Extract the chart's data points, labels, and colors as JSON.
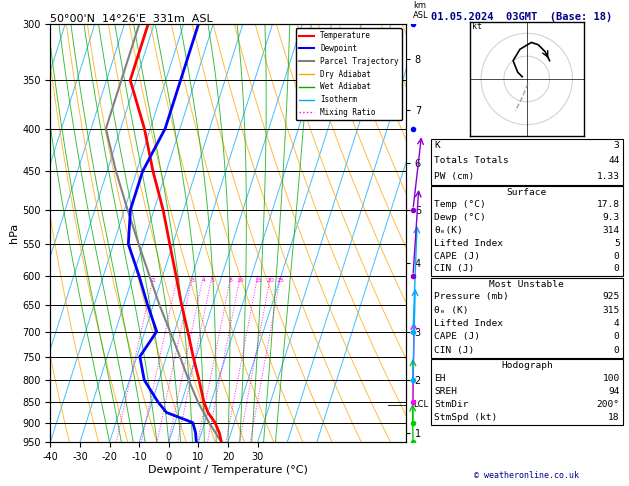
{
  "title_left": "50°00'N  14°26'E  331m  ASL",
  "title_right": "01.05.2024  03GMT  (Base: 18)",
  "xlabel": "Dewpoint / Temperature (°C)",
  "ylabel_left": "hPa",
  "pressure_levels": [
    300,
    350,
    400,
    450,
    500,
    550,
    600,
    650,
    700,
    750,
    800,
    850,
    900,
    950
  ],
  "temp_min": -40,
  "temp_max": 35,
  "temp_ticks": [
    -40,
    -30,
    -20,
    -10,
    0,
    10,
    20,
    30
  ],
  "km_ticks": [
    1,
    2,
    3,
    4,
    5,
    6,
    7,
    8
  ],
  "km_pressures": [
    925,
    800,
    700,
    580,
    500,
    440,
    380,
    330
  ],
  "lcl_pressure": 857,
  "mixing_ratio_values": [
    1,
    2,
    3,
    4,
    5,
    8,
    10,
    15,
    20,
    25
  ],
  "temperature_profile": {
    "pressure": [
      950,
      925,
      900,
      875,
      850,
      800,
      750,
      700,
      650,
      600,
      550,
      500,
      450,
      400,
      350,
      300
    ],
    "temp": [
      17.8,
      16.0,
      13.5,
      10.0,
      7.5,
      3.5,
      -1.0,
      -5.5,
      -10.5,
      -15.5,
      -21.0,
      -27.0,
      -34.5,
      -42.0,
      -52.0,
      -52.0
    ]
  },
  "dewpoint_profile": {
    "pressure": [
      950,
      925,
      900,
      875,
      850,
      800,
      750,
      700,
      650,
      600,
      550,
      500,
      450,
      400,
      350,
      300
    ],
    "temp": [
      9.3,
      8.0,
      6.0,
      -4.0,
      -8.0,
      -15.0,
      -19.0,
      -16.0,
      -22.0,
      -28.0,
      -35.0,
      -38.0,
      -38.0,
      -35.0,
      -35.0,
      -35.0
    ]
  },
  "parcel_trajectory": {
    "pressure": [
      950,
      900,
      850,
      800,
      750,
      700,
      650,
      600,
      550,
      500,
      450,
      400,
      350,
      300
    ],
    "temp": [
      17.8,
      11.5,
      5.5,
      0.0,
      -5.5,
      -11.5,
      -18.0,
      -24.5,
      -31.5,
      -39.0,
      -47.0,
      -55.0,
      -55.0,
      -55.0
    ]
  },
  "temp_color": "#ff0000",
  "dewpoint_color": "#0000ff",
  "parcel_color": "#808080",
  "dry_adiabat_color": "#ffa500",
  "wet_adiabat_color": "#00aa00",
  "isotherm_color": "#00aaff",
  "mixing_ratio_color": "#ff00ff",
  "stats": {
    "K": "3",
    "Totals_Totals": "44",
    "PW": "1.33",
    "Surf_Temp": "17.8",
    "Surf_Dewp": "9.3",
    "Surf_theta_e": "314",
    "Surf_LI": "5",
    "Surf_CAPE": "0",
    "Surf_CIN": "0",
    "MU_Pressure": "925",
    "MU_theta_e": "315",
    "MU_LI": "4",
    "MU_CAPE": "0",
    "MU_CIN": "0",
    "EH": "100",
    "SREH": "94",
    "StmDir": "200",
    "StmSpd": "18"
  },
  "hodo_u": [
    -2,
    -4,
    -6,
    -3,
    2,
    5,
    8,
    10
  ],
  "hodo_v": [
    1,
    3,
    8,
    13,
    16,
    15,
    12,
    8
  ],
  "hodo_u2": [
    0.5,
    -2,
    -5
  ],
  "hodo_v2": [
    -2,
    -8,
    -14
  ],
  "wind_pressures": [
    950,
    900,
    850,
    800,
    700,
    600,
    500,
    400,
    300
  ],
  "wind_speeds": [
    5,
    8,
    10,
    12,
    15,
    15,
    18,
    22,
    25
  ],
  "wind_dirs": [
    170,
    180,
    190,
    200,
    210,
    225,
    240,
    250,
    260
  ],
  "wind_colors": [
    "#00cc00",
    "#00cc00",
    "#ff00ff",
    "#00aaff",
    "#00aaff",
    "#8800cc",
    "#8800cc",
    "#0000ff",
    "#0000ff"
  ]
}
